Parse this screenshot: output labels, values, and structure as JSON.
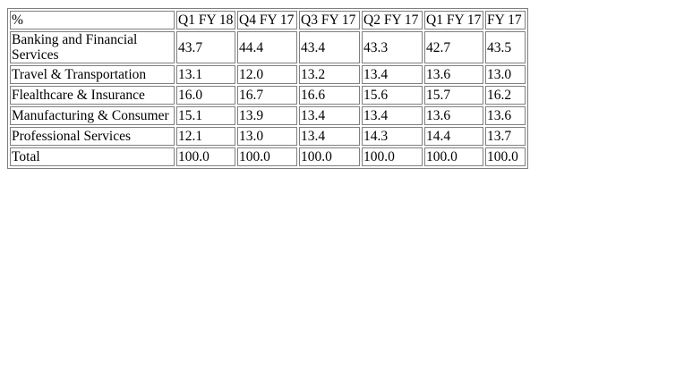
{
  "table": {
    "corner": "%",
    "columns": [
      "Q1 FY 18",
      "Q4 FY 17",
      "Q3 FY 17",
      "Q2 FY 17",
      "Q1 FY 17",
      "FY 17"
    ],
    "rows": [
      {
        "label": "Banking and Financial Services",
        "values": [
          "43.7",
          "44.4",
          "43.4",
          "43.3",
          "42.7",
          "43.5"
        ]
      },
      {
        "label": "Travel & Transportation",
        "values": [
          "13.1",
          "12.0",
          "13.2",
          "13.4",
          "13.6",
          "13.0"
        ]
      },
      {
        "label": "Flealthcare & Insurance",
        "values": [
          "16.0",
          "16.7",
          "16.6",
          "15.6",
          "15.7",
          "16.2"
        ]
      },
      {
        "label": "Manufacturing & Consumer",
        "values": [
          "15.1",
          "13.9",
          "13.4",
          "13.4",
          "13.6",
          "13.6"
        ]
      },
      {
        "label": "Professional Services",
        "values": [
          "12.1",
          "13.0",
          "13.4",
          "14.3",
          "14.4",
          "13.7"
        ]
      },
      {
        "label": "Total",
        "values": [
          "100.0",
          "100.0",
          "100.0",
          "100.0",
          "100.0",
          "100.0"
        ]
      }
    ]
  }
}
